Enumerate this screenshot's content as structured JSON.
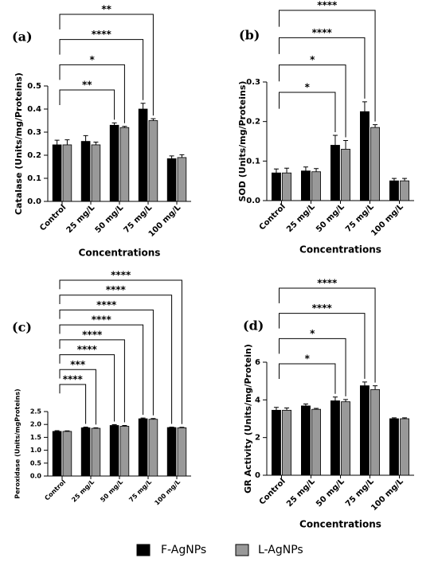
{
  "chart_data": [
    {
      "type": "bar",
      "label": "(a)",
      "ylabel": "Catalase (Units/mg/Proteins)",
      "xlabel": "Concentrations",
      "categories": [
        "Control",
        "25 mg/L",
        "50 mg/L",
        "75 mg/L",
        "100 mg/L"
      ],
      "series": [
        {
          "name": "F-AgNPs",
          "color": "#000000",
          "values": [
            0.245,
            0.26,
            0.33,
            0.4,
            0.185
          ],
          "errors": [
            0.02,
            0.025,
            0.01,
            0.025,
            0.012
          ]
        },
        {
          "name": "L-AgNPs",
          "color": "#999999",
          "values": [
            0.245,
            0.245,
            0.32,
            0.35,
            0.19
          ],
          "errors": [
            0.022,
            0.012,
            0.005,
            0.008,
            0.012
          ]
        }
      ],
      "ylim": [
        0,
        0.5
      ],
      "yticks": [
        {
          "value": 0,
          "label": "0.0"
        },
        0.1,
        0.2,
        0.3,
        0.4,
        0.5
      ],
      "annotations": [
        {
          "text": "**",
          "category": 2,
          "series": 0
        },
        {
          "text": "*",
          "category": 2,
          "series": 1
        },
        {
          "text": "****",
          "category": 3,
          "series": 0
        },
        {
          "text": "**",
          "category": 3,
          "series": 1
        }
      ]
    },
    {
      "type": "bar",
      "label": "(b)",
      "ylabel": "SOD (Units/mg/Proteins)",
      "xlabel": "Concentrations",
      "categories": [
        "Control",
        "25 mg/L",
        "50 mg/L",
        "75 mg/L",
        "100 mg/L"
      ],
      "series": [
        {
          "color": "#000000",
          "values": [
            0.07,
            0.075,
            0.14,
            0.225,
            0.05
          ],
          "errors": [
            0.01,
            0.01,
            0.025,
            0.025,
            0.006
          ]
        },
        {
          "color": "#999999",
          "values": [
            0.07,
            0.073,
            0.13,
            0.185,
            0.05
          ],
          "errors": [
            0.012,
            0.008,
            0.022,
            0.007,
            0.006
          ]
        }
      ],
      "ylim": [
        0,
        0.3
      ],
      "yticks": [
        {
          "value": 0,
          "label": "0.0"
        },
        0.1,
        0.2,
        0.3
      ],
      "annotations": [
        {
          "text": "*",
          "category": 2,
          "series": 0
        },
        {
          "text": "*",
          "category": 2,
          "series": 1
        },
        {
          "text": "****",
          "category": 3,
          "series": 0
        },
        {
          "text": "****",
          "category": 3,
          "series": 1
        }
      ]
    },
    {
      "type": "bar",
      "label": "(c)",
      "ylabel": "Peroxidase (Units/mgProteins)",
      "categories": [
        "Control",
        "25 mg/L",
        "50 mg/L",
        "75 mg/L",
        "100 mg/L"
      ],
      "series": [
        {
          "color": "#000000",
          "values": [
            1.73,
            1.87,
            1.96,
            2.22,
            1.88
          ],
          "errors": [
            0.03,
            0.03,
            0.03,
            0.03,
            0.02
          ]
        },
        {
          "color": "#999999",
          "values": [
            1.73,
            1.85,
            1.93,
            2.2,
            1.87
          ],
          "errors": [
            0.02,
            0.02,
            0.03,
            0.03,
            0.02
          ]
        }
      ],
      "ylim": [
        0,
        2.5
      ],
      "yticks": [
        {
          "value": 0,
          "label": "0.0"
        },
        0.5,
        {
          "value": 1,
          "label": "1.0"
        },
        1.5,
        {
          "value": 2,
          "label": "2.0"
        },
        2.5
      ],
      "annotations": [
        {
          "text": "****",
          "category": 1,
          "series": 0
        },
        {
          "text": "***",
          "category": 1,
          "series": 1
        },
        {
          "text": "****",
          "category": 2,
          "series": 0
        },
        {
          "text": "****",
          "category": 2,
          "series": 1
        },
        {
          "text": "****",
          "category": 3,
          "series": 0
        },
        {
          "text": "****",
          "category": 3,
          "series": 1
        },
        {
          "text": "****",
          "category": 4,
          "series": 0
        },
        {
          "text": "****",
          "category": 4,
          "series": 1
        }
      ]
    },
    {
      "type": "bar",
      "label": "(d)",
      "ylabel": "GR Activity (Units/mg/Protein)",
      "xlabel": "Concentrations",
      "categories": [
        "Control",
        "25 mg/L",
        "50 mg/L",
        "75 mg/L",
        "100 mg/L"
      ],
      "series": [
        {
          "color": "#000000",
          "values": [
            3.45,
            3.68,
            3.95,
            4.75,
            3.0
          ],
          "errors": [
            0.15,
            0.1,
            0.2,
            0.2,
            0.05
          ]
        },
        {
          "color": "#999999",
          "values": [
            3.45,
            3.5,
            3.9,
            4.55,
            3.0
          ],
          "errors": [
            0.12,
            0.05,
            0.12,
            0.2,
            0.05
          ]
        }
      ],
      "ylim": [
        0,
        6
      ],
      "yticks": [
        0,
        2,
        4,
        6
      ],
      "annotations": [
        {
          "text": "*",
          "category": 2,
          "series": 0
        },
        {
          "text": "*",
          "category": 2,
          "series": 1
        },
        {
          "text": "****",
          "category": 3,
          "series": 0
        },
        {
          "text": "****",
          "category": 3,
          "series": 1
        }
      ]
    }
  ]
}
